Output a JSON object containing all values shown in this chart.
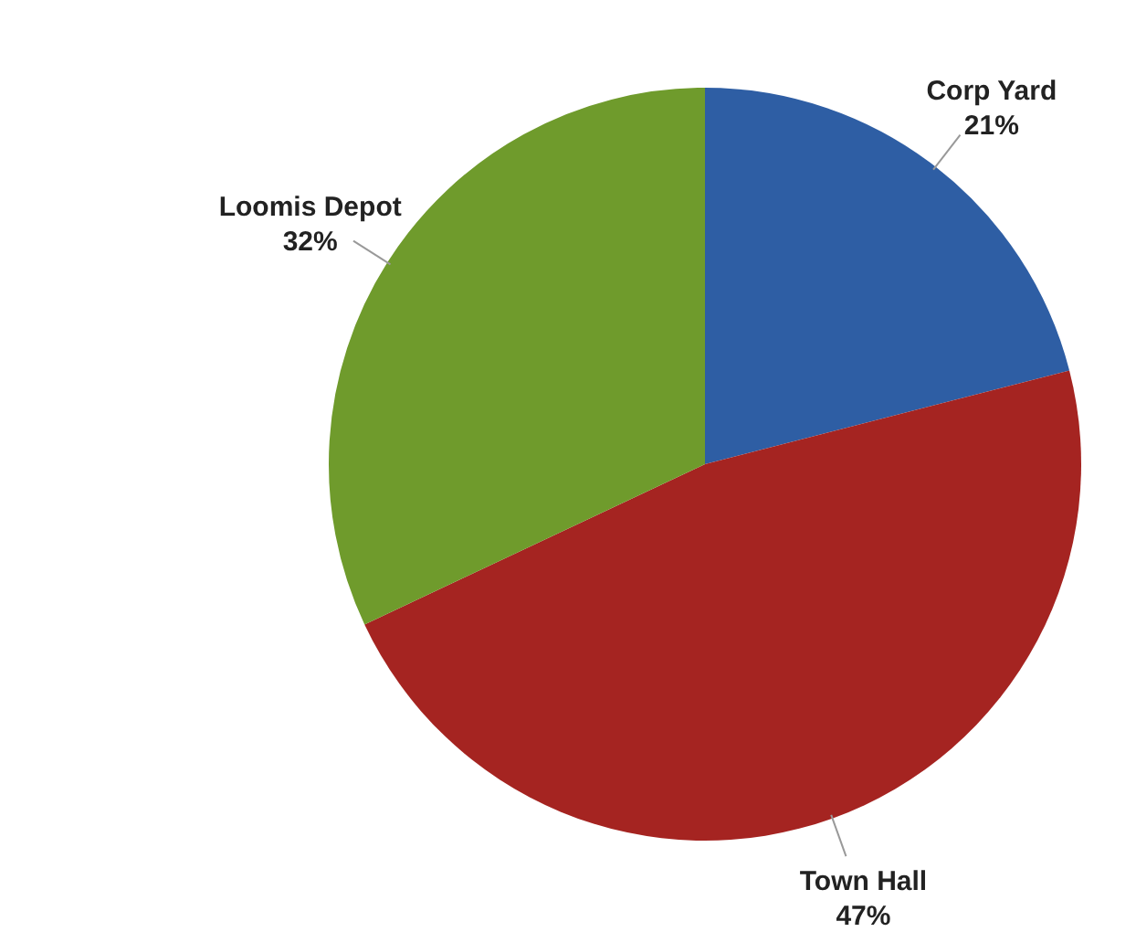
{
  "chart_data": {
    "type": "pie",
    "categories": [
      "Corp Yard",
      "Town Hall",
      "Loomis Depot"
    ],
    "values": [
      21,
      47,
      32
    ],
    "value_labels": [
      "21%",
      "47%",
      "32%"
    ],
    "colors": [
      "#2e5ea4",
      "#a52421",
      "#6f9b2c"
    ]
  }
}
